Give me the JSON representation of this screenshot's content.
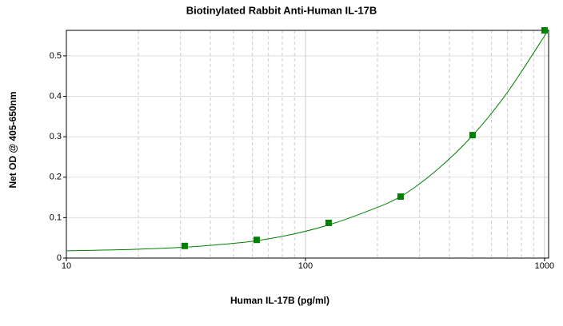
{
  "chart_data": {
    "type": "scatter",
    "title": "Biotinylated Rabbit Anti-Human IL-17B",
    "x_label": "Human IL-17B (pg/ml)",
    "y_label": "Net OD @ 405-650nm",
    "x_log": true,
    "xlim": [
      10,
      1040
    ],
    "ylim": [
      0,
      0.563
    ],
    "xticks": [
      10,
      100,
      1000
    ],
    "x_minor_ticks": [
      20,
      30,
      40,
      50,
      60,
      70,
      80,
      90,
      200,
      300,
      400,
      500,
      600,
      700,
      800,
      900
    ],
    "yticks": [
      0,
      0.1,
      0.2,
      0.3,
      0.4,
      0.5
    ],
    "grid": true,
    "series": [
      {
        "color": "#008000",
        "x": [
          31.25,
          62.5,
          125,
          250,
          500,
          1000
        ],
        "values": [
          0.03,
          0.045,
          0.087,
          0.152,
          0.304,
          0.563
        ]
      }
    ],
    "curve": {
      "color": "#008000",
      "x": [
        10,
        15,
        20,
        31.25,
        45,
        62.5,
        90,
        125,
        180,
        250,
        350,
        500,
        700,
        1040
      ],
      "values": [
        0.018,
        0.02,
        0.022,
        0.027,
        0.034,
        0.043,
        0.06,
        0.082,
        0.115,
        0.152,
        0.215,
        0.303,
        0.41,
        0.565
      ]
    }
  }
}
